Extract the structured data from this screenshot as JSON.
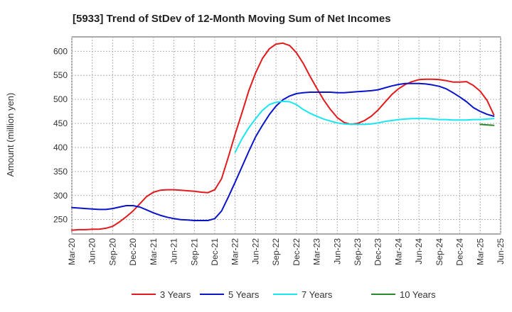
{
  "chart_data": {
    "type": "line",
    "title": "[5933]  Trend of StDev of 12-Month Moving Sum of Net Incomes",
    "ylabel": "Amount (million yen)",
    "xlabel": "",
    "ylim": [
      220,
      630
    ],
    "yticks": [
      250,
      300,
      350,
      400,
      450,
      500,
      550,
      600
    ],
    "x_range": [
      "2020-03",
      "2025-06"
    ],
    "xticks": [
      "Mar-20",
      "Jun-20",
      "Sep-20",
      "Dec-20",
      "Mar-21",
      "Jun-21",
      "Sep-21",
      "Dec-21",
      "Mar-22",
      "Jun-22",
      "Sep-22",
      "Dec-22",
      "Mar-23",
      "Jun-23",
      "Sep-23",
      "Dec-23",
      "Mar-24",
      "Jun-24",
      "Sep-24",
      "Dec-24",
      "Mar-25",
      "Jun-25"
    ],
    "grid": true,
    "legend_position": "bottom",
    "series": [
      {
        "name": "3 Years",
        "color": "#e31a1c",
        "points": [
          [
            "2020-03",
            228
          ],
          [
            "2020-04",
            229
          ],
          [
            "2020-05",
            229
          ],
          [
            "2020-06",
            230
          ],
          [
            "2020-07",
            230
          ],
          [
            "2020-08",
            232
          ],
          [
            "2020-09",
            236
          ],
          [
            "2020-10",
            245
          ],
          [
            "2020-11",
            256
          ],
          [
            "2020-12",
            268
          ],
          [
            "2021-01",
            283
          ],
          [
            "2021-02",
            298
          ],
          [
            "2021-03",
            307
          ],
          [
            "2021-04",
            311
          ],
          [
            "2021-05",
            312
          ],
          [
            "2021-06",
            312
          ],
          [
            "2021-07",
            311
          ],
          [
            "2021-08",
            310
          ],
          [
            "2021-09",
            309
          ],
          [
            "2021-10",
            307
          ],
          [
            "2021-11",
            306
          ],
          [
            "2021-12",
            312
          ],
          [
            "2022-01",
            335
          ],
          [
            "2022-02",
            380
          ],
          [
            "2022-03",
            428
          ],
          [
            "2022-04",
            472
          ],
          [
            "2022-05",
            518
          ],
          [
            "2022-06",
            555
          ],
          [
            "2022-07",
            585
          ],
          [
            "2022-08",
            605
          ],
          [
            "2022-09",
            615
          ],
          [
            "2022-10",
            617
          ],
          [
            "2022-11",
            612
          ],
          [
            "2022-12",
            597
          ],
          [
            "2023-01",
            575
          ],
          [
            "2023-02",
            548
          ],
          [
            "2023-03",
            523
          ],
          [
            "2023-04",
            499
          ],
          [
            "2023-05",
            479
          ],
          [
            "2023-06",
            462
          ],
          [
            "2023-07",
            452
          ],
          [
            "2023-08",
            448
          ],
          [
            "2023-09",
            450
          ],
          [
            "2023-10",
            456
          ],
          [
            "2023-11",
            465
          ],
          [
            "2023-12",
            478
          ],
          [
            "2024-01",
            494
          ],
          [
            "2024-02",
            510
          ],
          [
            "2024-03",
            522
          ],
          [
            "2024-04",
            531
          ],
          [
            "2024-05",
            537
          ],
          [
            "2024-06",
            541
          ],
          [
            "2024-07",
            542
          ],
          [
            "2024-08",
            542
          ],
          [
            "2024-09",
            541
          ],
          [
            "2024-10",
            539
          ],
          [
            "2024-11",
            536
          ],
          [
            "2024-12",
            536
          ],
          [
            "2025-01",
            537
          ],
          [
            "2025-02",
            529
          ],
          [
            "2025-03",
            517
          ],
          [
            "2025-04",
            498
          ],
          [
            "2025-05",
            468
          ]
        ]
      },
      {
        "name": "5 Years",
        "color": "#0a14c8",
        "points": [
          [
            "2020-03",
            275
          ],
          [
            "2020-04",
            274
          ],
          [
            "2020-05",
            273
          ],
          [
            "2020-06",
            272
          ],
          [
            "2020-07",
            271
          ],
          [
            "2020-08",
            271
          ],
          [
            "2020-09",
            273
          ],
          [
            "2020-10",
            276
          ],
          [
            "2020-11",
            279
          ],
          [
            "2020-12",
            279
          ],
          [
            "2021-01",
            276
          ],
          [
            "2021-02",
            270
          ],
          [
            "2021-03",
            264
          ],
          [
            "2021-04",
            259
          ],
          [
            "2021-05",
            255
          ],
          [
            "2021-06",
            252
          ],
          [
            "2021-07",
            250
          ],
          [
            "2021-08",
            249
          ],
          [
            "2021-09",
            248
          ],
          [
            "2021-10",
            248
          ],
          [
            "2021-11",
            248
          ],
          [
            "2021-12",
            252
          ],
          [
            "2022-01",
            268
          ],
          [
            "2022-02",
            297
          ],
          [
            "2022-03",
            328
          ],
          [
            "2022-04",
            360
          ],
          [
            "2022-05",
            392
          ],
          [
            "2022-06",
            422
          ],
          [
            "2022-07",
            446
          ],
          [
            "2022-08",
            468
          ],
          [
            "2022-09",
            486
          ],
          [
            "2022-10",
            499
          ],
          [
            "2022-11",
            507
          ],
          [
            "2022-12",
            512
          ],
          [
            "2023-01",
            514
          ],
          [
            "2023-02",
            515
          ],
          [
            "2023-03",
            515
          ],
          [
            "2023-04",
            515
          ],
          [
            "2023-05",
            515
          ],
          [
            "2023-06",
            514
          ],
          [
            "2023-07",
            514
          ],
          [
            "2023-08",
            515
          ],
          [
            "2023-09",
            516
          ],
          [
            "2023-10",
            517
          ],
          [
            "2023-11",
            518
          ],
          [
            "2023-12",
            520
          ],
          [
            "2024-01",
            524
          ],
          [
            "2024-02",
            528
          ],
          [
            "2024-03",
            531
          ],
          [
            "2024-04",
            533
          ],
          [
            "2024-05",
            533
          ],
          [
            "2024-06",
            533
          ],
          [
            "2024-07",
            532
          ],
          [
            "2024-08",
            530
          ],
          [
            "2024-09",
            527
          ],
          [
            "2024-10",
            522
          ],
          [
            "2024-11",
            514
          ],
          [
            "2024-12",
            505
          ],
          [
            "2025-01",
            495
          ],
          [
            "2025-02",
            483
          ],
          [
            "2025-03",
            475
          ],
          [
            "2025-04",
            469
          ],
          [
            "2025-05",
            465
          ]
        ]
      },
      {
        "name": "7 Years",
        "color": "#19e6f0",
        "points": [
          [
            "2022-03",
            390
          ],
          [
            "2022-04",
            418
          ],
          [
            "2022-05",
            441
          ],
          [
            "2022-06",
            460
          ],
          [
            "2022-07",
            477
          ],
          [
            "2022-08",
            489
          ],
          [
            "2022-09",
            494
          ],
          [
            "2022-10",
            496
          ],
          [
            "2022-11",
            495
          ],
          [
            "2022-12",
            489
          ],
          [
            "2023-01",
            479
          ],
          [
            "2023-02",
            471
          ],
          [
            "2023-03",
            465
          ],
          [
            "2023-04",
            459
          ],
          [
            "2023-05",
            455
          ],
          [
            "2023-06",
            451
          ],
          [
            "2023-07",
            449
          ],
          [
            "2023-08",
            448
          ],
          [
            "2023-09",
            448
          ],
          [
            "2023-10",
            448
          ],
          [
            "2023-11",
            449
          ],
          [
            "2023-12",
            451
          ],
          [
            "2024-01",
            454
          ],
          [
            "2024-02",
            456
          ],
          [
            "2024-03",
            458
          ],
          [
            "2024-04",
            459
          ],
          [
            "2024-05",
            460
          ],
          [
            "2024-06",
            460
          ],
          [
            "2024-07",
            460
          ],
          [
            "2024-08",
            459
          ],
          [
            "2024-09",
            458
          ],
          [
            "2024-10",
            458
          ],
          [
            "2024-11",
            457
          ],
          [
            "2024-12",
            457
          ],
          [
            "2025-01",
            457
          ],
          [
            "2025-02",
            458
          ],
          [
            "2025-03",
            458
          ],
          [
            "2025-04",
            459
          ],
          [
            "2025-05",
            460
          ]
        ]
      },
      {
        "name": "10 Years",
        "color": "#2a8a2a",
        "points": [
          [
            "2025-03",
            448
          ],
          [
            "2025-04",
            447
          ],
          [
            "2025-05",
            446
          ]
        ]
      }
    ]
  }
}
